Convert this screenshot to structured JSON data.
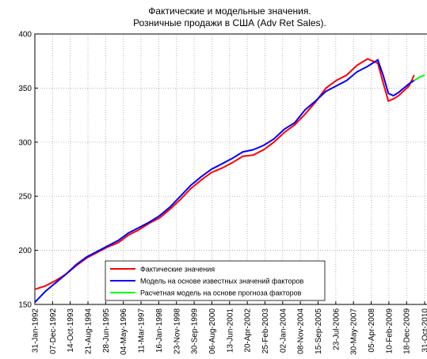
{
  "chart_data": {
    "type": "line",
    "title": [
      "Фактические и модельные значения.",
      "Розничные продажи в США (Adv Ret Sales)."
    ],
    "x": [
      "1992-01-31",
      "1992-07-31",
      "1993-01-31",
      "1993-07-31",
      "1994-01-31",
      "1994-07-31",
      "1995-01-31",
      "1995-07-31",
      "1996-01-31",
      "1996-07-31",
      "1997-01-31",
      "1997-07-31",
      "1998-01-31",
      "1998-07-31",
      "1999-01-31",
      "1999-07-31",
      "2000-01-31",
      "2000-07-31",
      "2001-01-31",
      "2001-07-31",
      "2002-01-31",
      "2002-07-31",
      "2003-01-31",
      "2003-07-31",
      "2004-01-31",
      "2004-07-31",
      "2005-01-31",
      "2005-07-31",
      "2006-01-31",
      "2006-07-31",
      "2007-01-31",
      "2007-07-31",
      "2008-01-31",
      "2008-07-31",
      "2008-10-31",
      "2009-01-31",
      "2009-04-30",
      "2009-07-31",
      "2010-01-31",
      "2010-04-30",
      "2010-07-31",
      "2010-10-31"
    ],
    "series": [
      {
        "name": "Фактические значения",
        "color": "#ff0000",
        "values": [
          164,
          167,
          172,
          178,
          186,
          193,
          198,
          203,
          207,
          214,
          219,
          225,
          230,
          238,
          247,
          257,
          265,
          272,
          276,
          281,
          287,
          288,
          293,
          300,
          309,
          316,
          326,
          337,
          350,
          357,
          362,
          371,
          377,
          373,
          355,
          338,
          340,
          343,
          352,
          362,
          null,
          null
        ]
      },
      {
        "name": "Модель на основе известных значений факторов",
        "color": "#0000ff",
        "values": [
          152,
          162,
          170,
          178,
          187,
          194,
          199,
          204,
          209,
          216,
          221,
          226,
          232,
          240,
          250,
          260,
          268,
          275,
          280,
          285,
          291,
          293,
          297,
          303,
          312,
          318,
          330,
          338,
          347,
          352,
          357,
          365,
          370,
          376,
          362,
          345,
          343,
          346,
          354,
          357,
          null,
          null
        ]
      },
      {
        "name": "Расчетная модель на основе прогноза факторов",
        "color": "#00ff00",
        "values": [
          null,
          null,
          null,
          null,
          null,
          null,
          null,
          null,
          null,
          null,
          null,
          null,
          null,
          null,
          null,
          null,
          null,
          null,
          null,
          null,
          null,
          null,
          null,
          null,
          null,
          null,
          null,
          null,
          null,
          null,
          null,
          null,
          null,
          null,
          null,
          null,
          null,
          null,
          null,
          357,
          360,
          362
        ]
      }
    ],
    "xlim": [
      "1992-01-31",
      "2010-10-31"
    ],
    "xticks": [
      {
        "value": "1992-01-31",
        "label": "31-Jan-1992"
      },
      {
        "value": "1992-12-07",
        "label": "07-Dec-1992"
      },
      {
        "value": "1993-10-14",
        "label": "14-Oct-1993"
      },
      {
        "value": "1994-08-21",
        "label": "21-Aug-1994"
      },
      {
        "value": "1995-06-28",
        "label": "28-Jun-1995"
      },
      {
        "value": "1996-05-04",
        "label": "04-May-1996"
      },
      {
        "value": "1997-03-11",
        "label": "11-Mar-1997"
      },
      {
        "value": "1998-01-16",
        "label": "16-Jan-1998"
      },
      {
        "value": "1998-11-23",
        "label": "23-Nov-1998"
      },
      {
        "value": "1999-09-30",
        "label": "30-Sep-1999"
      },
      {
        "value": "2000-08-06",
        "label": "06-Aug-2000"
      },
      {
        "value": "2001-06-13",
        "label": "13-Jun-2001"
      },
      {
        "value": "2002-04-20",
        "label": "20-Apr-2002"
      },
      {
        "value": "2003-02-25",
        "label": "25-Feb-2003"
      },
      {
        "value": "2004-01-02",
        "label": "02-Jan-2004"
      },
      {
        "value": "2004-11-08",
        "label": "08-Nov-2004"
      },
      {
        "value": "2005-09-15",
        "label": "15-Sep-2005"
      },
      {
        "value": "2006-07-23",
        "label": "23-Jul-2006"
      },
      {
        "value": "2007-05-30",
        "label": "30-May-2007"
      },
      {
        "value": "2008-04-05",
        "label": "05-Apr-2008"
      },
      {
        "value": "2009-02-10",
        "label": "10-Feb-2009"
      },
      {
        "value": "2009-12-18",
        "label": "18-Dec-2009"
      },
      {
        "value": "2010-10-31",
        "label": "31-Oct-2010"
      }
    ],
    "ylim": [
      150,
      400
    ],
    "yticks": [
      150,
      200,
      250,
      300,
      350,
      400
    ],
    "grid": true,
    "legend": "lower center"
  }
}
